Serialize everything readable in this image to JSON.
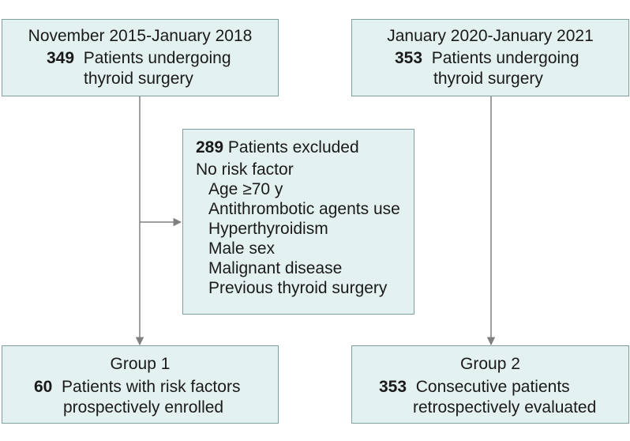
{
  "boxes": {
    "top_left": {
      "heading": "November 2015-January 2018",
      "count": "349",
      "text_line1": "Patients undergoing",
      "text_line2": "thyroid surgery"
    },
    "top_right": {
      "heading": "January 2020-January 2021",
      "count": "353",
      "text_line1": "Patients undergoing",
      "text_line2": "thyroid surgery"
    },
    "excluded": {
      "count": "289",
      "label": "Patients excluded",
      "subheading": "No risk factor",
      "items": [
        "Age ≥70 y",
        "Antithrombotic agents use",
        "Hyperthyroidism",
        "Male sex",
        "Malignant disease",
        "Previous thyroid surgery"
      ]
    },
    "group1": {
      "heading": "Group 1",
      "count": "60",
      "text_line1": "Patients with risk factors",
      "text_line2": "prospectively enrolled"
    },
    "group2": {
      "heading": "Group 2",
      "count": "353",
      "text_line1": "Consecutive patients",
      "text_line2": "retrospectively evaluated"
    }
  },
  "colors": {
    "box_fill": "#e4f1f1",
    "box_border": "#7f9f9f",
    "arrow": "#808080"
  }
}
